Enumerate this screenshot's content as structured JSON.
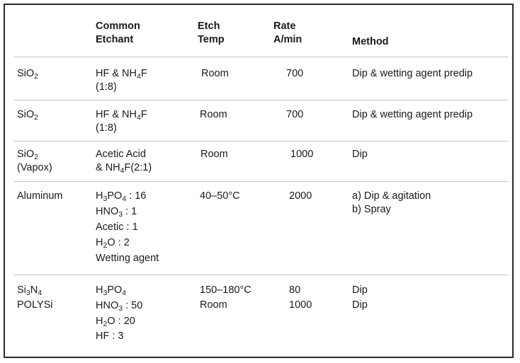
{
  "table": {
    "headers": {
      "etchant": [
        "Common",
        "Etchant"
      ],
      "temp": [
        "Etch",
        "Temp"
      ],
      "rate": [
        "Rate",
        "A/min"
      ],
      "method": "Method"
    },
    "rows": [
      {
        "material": [
          "SiO₂"
        ],
        "etchant": [
          "HF & NH₄F",
          "(1:8)"
        ],
        "temp": [
          "Room"
        ],
        "rate": [
          "700"
        ],
        "method": [
          "Dip & wetting agent predip"
        ]
      },
      {
        "material": [
          "SiO₂"
        ],
        "etchant": [
          "HF & NH₄F",
          "(1:8)"
        ],
        "temp": [
          "Room"
        ],
        "rate": [
          "700"
        ],
        "method": [
          "Dip & wetting agent predip"
        ]
      },
      {
        "material": [
          "SiO₂",
          "(Vapox)"
        ],
        "etchant": [
          "Acetic Acid",
          "& NH₄F(2:1)"
        ],
        "temp": [
          "Room"
        ],
        "rate": [
          "1000"
        ],
        "method": [
          "Dip"
        ]
      },
      {
        "material": [
          "Aluminum"
        ],
        "etchant": [
          "H₃PO₄ : 16",
          "HNO₃ : 1",
          "Acetic : 1",
          "H₂O : 2",
          "Wetting agent"
        ],
        "temp": [
          "40–50°C"
        ],
        "rate": [
          "2000"
        ],
        "method": [
          "a) Dip & agitation",
          "b) Spray"
        ]
      },
      {
        "material": [
          "Si₃N₄",
          "POLYSi"
        ],
        "etchant": [
          "H₃PO₄",
          "HNO₃ : 50",
          "H₂O : 20",
          "HF : 3"
        ],
        "temp": [
          "150–180°C",
          "Room"
        ],
        "rate": [
          "80",
          "1000"
        ],
        "method": [
          "Dip",
          "Dip"
        ]
      }
    ]
  }
}
